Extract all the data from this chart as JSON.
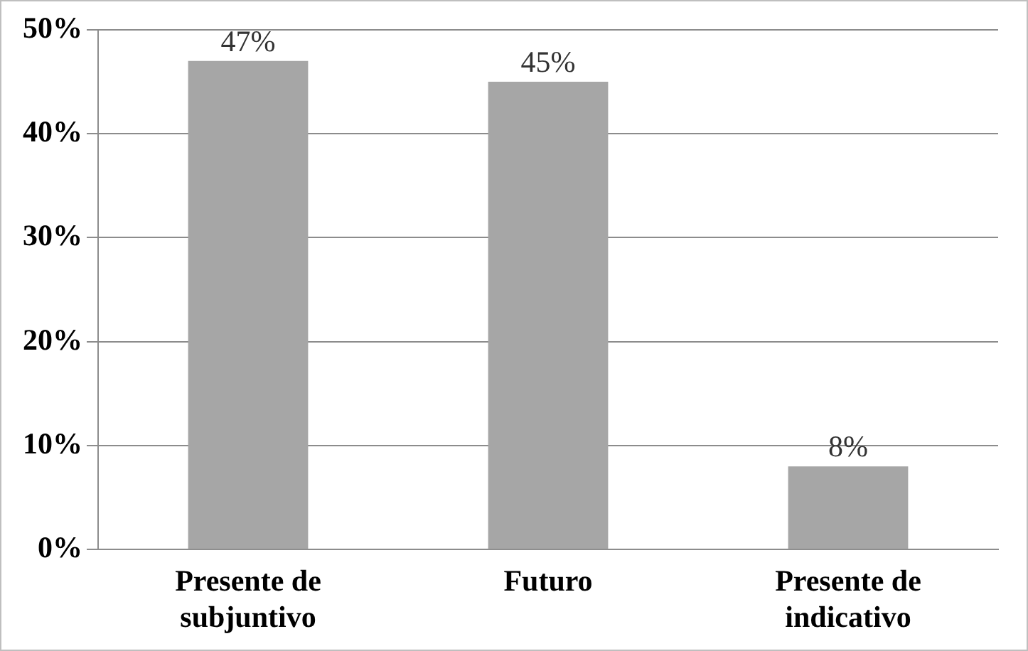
{
  "chart_data": {
    "type": "bar",
    "categories": [
      "Presente de subjuntivo",
      "Futuro",
      "Presente de indicativo"
    ],
    "values": [
      47,
      45,
      8
    ],
    "value_labels": [
      "47%",
      "45%",
      "8%"
    ],
    "color": "#a6a6a6",
    "ylim": [
      0,
      50
    ],
    "yticks": [
      {
        "value": 0,
        "label": "0%"
      },
      {
        "value": 10,
        "label": "10%"
      },
      {
        "value": 20,
        "label": "20%"
      },
      {
        "value": 30,
        "label": "30%"
      },
      {
        "value": 40,
        "label": "40%"
      },
      {
        "value": 50,
        "label": "50%"
      }
    ],
    "grid": "y",
    "legend": false
  }
}
